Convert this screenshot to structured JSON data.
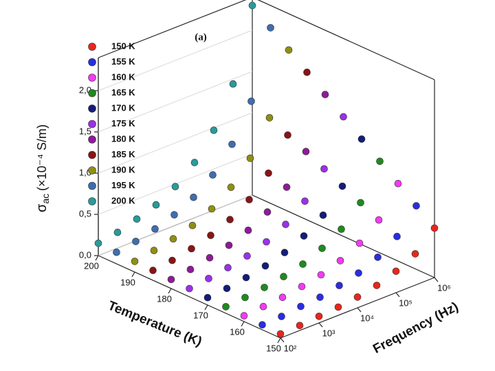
{
  "chart_data": {
    "type": "scatter3d",
    "title": "(a)",
    "xlabel": "Frequency (Hz)",
    "tlabel": "Temperature (K)",
    "zlabel": {
      "symbol": "σ",
      "subscript": "ac",
      "unit": "(×10⁻⁴ S/m)"
    },
    "x": [
      100,
      316,
      1000,
      3162,
      10000,
      31623,
      100000,
      316228,
      1000000
    ],
    "xlim": [
      100,
      1000000
    ],
    "log_x": true,
    "xticks": [
      {
        "value": 100,
        "label": "10²"
      },
      {
        "value": 1000,
        "label": "10³"
      },
      {
        "value": 10000,
        "label": "10⁴"
      },
      {
        "value": 100000,
        "label": "10⁵"
      },
      {
        "value": 1000000,
        "label": "10⁶"
      }
    ],
    "tlim": [
      150,
      200
    ],
    "tticks": [
      150,
      160,
      170,
      180,
      190,
      200
    ],
    "zlim": [
      0,
      2.4
    ],
    "zticks": [
      {
        "value": 0,
        "label": "0,0"
      },
      {
        "value": 0.5,
        "label": "0,5"
      },
      {
        "value": 1.0,
        "label": "1,0"
      },
      {
        "value": 1.5,
        "label": "1,5"
      },
      {
        "value": 2.0,
        "label": "2,0"
      }
    ],
    "series": [
      {
        "name": "150 K",
        "temperature": 150,
        "color": "#e8261c",
        "values": [
          0.05,
          0.06,
          0.08,
          0.1,
          0.13,
          0.18,
          0.26,
          0.38,
          0.6
        ]
      },
      {
        "name": "155 K",
        "temperature": 155,
        "color": "#2a2de0",
        "values": [
          0.06,
          0.07,
          0.1,
          0.12,
          0.17,
          0.23,
          0.33,
          0.49,
          0.77
        ]
      },
      {
        "name": "160 K",
        "temperature": 160,
        "color": "#f03cf0",
        "values": [
          0.07,
          0.09,
          0.11,
          0.15,
          0.2,
          0.28,
          0.4,
          0.59,
          0.94
        ]
      },
      {
        "name": "165 K",
        "temperature": 165,
        "color": "#1f8a1f",
        "values": [
          0.08,
          0.1,
          0.13,
          0.17,
          0.23,
          0.33,
          0.47,
          0.7,
          1.11
        ]
      },
      {
        "name": "170 K",
        "temperature": 170,
        "color": "#141c7a",
        "values": [
          0.09,
          0.11,
          0.15,
          0.2,
          0.27,
          0.38,
          0.54,
          0.8,
          1.28
        ]
      },
      {
        "name": "175 K",
        "temperature": 175,
        "color": "#9b30e8",
        "values": [
          0.1,
          0.13,
          0.17,
          0.22,
          0.3,
          0.42,
          0.61,
          0.91,
          1.45
        ]
      },
      {
        "name": "180 K",
        "temperature": 180,
        "color": "#8e1a9a",
        "values": [
          0.11,
          0.14,
          0.19,
          0.25,
          0.34,
          0.47,
          0.68,
          1.02,
          1.62
        ]
      },
      {
        "name": "185 K",
        "temperature": 185,
        "color": "#8a1414",
        "values": [
          0.12,
          0.15,
          0.2,
          0.27,
          0.37,
          0.52,
          0.75,
          1.12,
          1.79
        ]
      },
      {
        "name": "190 K",
        "temperature": 190,
        "color": "#8f8f12",
        "values": [
          0.13,
          0.17,
          0.22,
          0.29,
          0.4,
          0.57,
          0.83,
          1.23,
          1.96
        ]
      },
      {
        "name": "195 K",
        "temperature": 195,
        "color": "#3d6eb0",
        "values": [
          0.14,
          0.18,
          0.24,
          0.32,
          0.44,
          0.62,
          0.9,
          1.33,
          2.13
        ]
      },
      {
        "name": "200 K",
        "temperature": 200,
        "color": "#2a9a9a",
        "values": [
          0.15,
          0.19,
          0.26,
          0.34,
          0.47,
          0.67,
          0.97,
          1.44,
          2.3
        ]
      }
    ]
  }
}
